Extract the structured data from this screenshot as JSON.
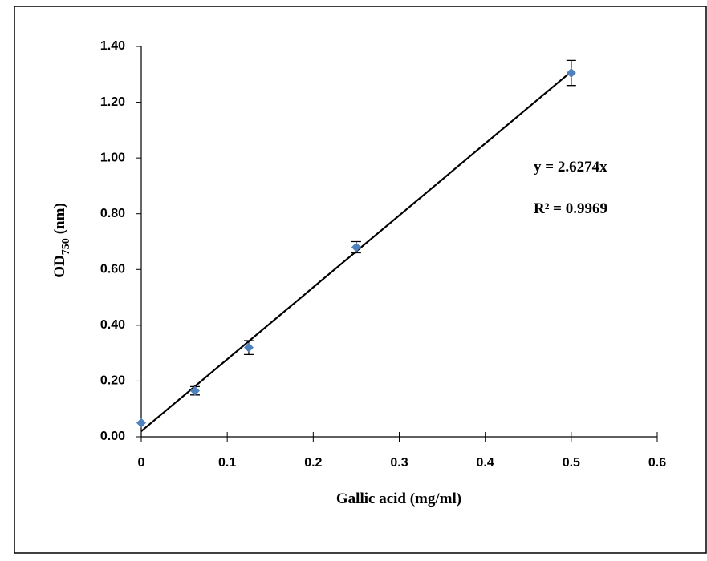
{
  "chart_data": {
    "type": "scatter",
    "xlabel": "Gallic acid (mg/ml)",
    "ylabel": [
      "OD",
      "750",
      "(nm)"
    ],
    "x": [
      0,
      0.0625,
      0.125,
      0.25,
      0.5
    ],
    "values": [
      0.05,
      0.165,
      0.32,
      0.68,
      1.305
    ],
    "errors": [
      0,
      0.015,
      0.025,
      0.02,
      0.045
    ],
    "color": "#4f81bd",
    "trendline": {
      "x": [
        0,
        0.5
      ],
      "y": [
        0.02,
        1.31
      ],
      "color": "#000000"
    },
    "annotations": [
      "y = 2.6274x",
      "R² = 0.9969"
    ],
    "xlim": [
      0,
      0.6
    ],
    "xticks": [
      0,
      0.1,
      0.2,
      0.3,
      0.4,
      0.5,
      0.6
    ],
    "ylim": [
      0,
      1.4
    ],
    "yticks": [
      {
        "value": 0,
        "label": "0.00"
      },
      {
        "value": 0.2,
        "label": "0.20"
      },
      {
        "value": 0.4,
        "label": "0.40"
      },
      {
        "value": 0.6,
        "label": "0.60"
      },
      {
        "value": 0.8,
        "label": "0.80"
      },
      {
        "value": 1.0,
        "label": "1.00"
      },
      {
        "value": 1.2,
        "label": "1.20"
      },
      {
        "value": 1.4,
        "label": "1.40"
      }
    ]
  }
}
